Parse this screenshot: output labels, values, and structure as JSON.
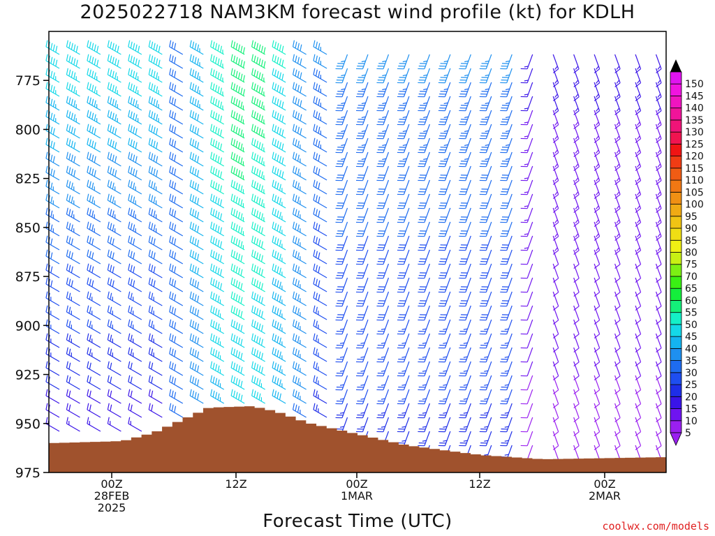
{
  "chart_data": {
    "type": "wind_barb_time_height",
    "title": "2025022718 NAM3KM forecast wind profile (kt) for KDLH",
    "xlabel": "Forecast Time (UTC)",
    "credit": "coolwx.com/models",
    "y_axis": {
      "range": [
        975,
        750
      ],
      "ticks": [
        775,
        800,
        825,
        850,
        875,
        900,
        925,
        950,
        975
      ]
    },
    "x_axis": {
      "tick_labels": [
        {
          "lines": [
            "00Z",
            "28FEB",
            "2025"
          ]
        },
        {
          "lines": [
            "12Z"
          ]
        },
        {
          "lines": [
            "00Z",
            "1MAR"
          ]
        },
        {
          "lines": [
            "12Z"
          ]
        },
        {
          "lines": [
            "00Z",
            "2MAR"
          ]
        }
      ]
    },
    "colorbar": {
      "levels": [
        5,
        10,
        15,
        20,
        25,
        30,
        35,
        40,
        45,
        50,
        55,
        60,
        65,
        70,
        75,
        80,
        85,
        90,
        95,
        100,
        105,
        110,
        115,
        120,
        125,
        130,
        135,
        140,
        145,
        150
      ],
      "colors": [
        "#9a20f0",
        "#6f14f0",
        "#3a14e8",
        "#1e2ee8",
        "#1e4ef0",
        "#1e6cf0",
        "#1e90f0",
        "#14b4f0",
        "#14d8e8",
        "#14f0c8",
        "#14f07a",
        "#14ee3c",
        "#3af014",
        "#7cf014",
        "#c8f014",
        "#f0f014",
        "#f0de14",
        "#f0c414",
        "#f0aa14",
        "#f09014",
        "#f07814",
        "#f05c14",
        "#f03c14",
        "#f01414",
        "#f01450",
        "#f01478",
        "#f0149a",
        "#f014c0",
        "#f014e0",
        "#e014f0"
      ]
    },
    "terrain_color": "#a0522d"
  }
}
